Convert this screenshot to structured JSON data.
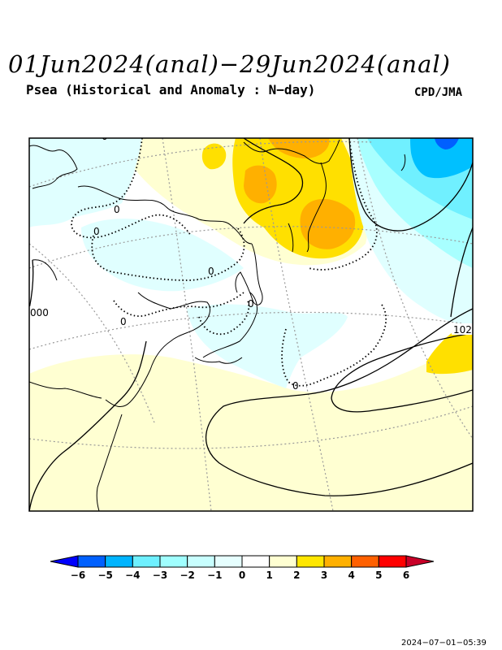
{
  "header": {
    "title": "01Jun2024(anal)−29Jun2024(anal)",
    "subtitle": "Psea (Historical and Anomaly : N−day)",
    "credit": "CPD/JMA"
  },
  "map": {
    "contour_labels": [
      "0",
      "0",
      "0",
      "0",
      "0",
      "0",
      "0",
      "000",
      "102"
    ],
    "fill_colors": {
      "light_yellow": "#ffffd2",
      "yellow": "#ffe000",
      "orange": "#ffb000",
      "pale_cyan": "#e0ffff",
      "light_cyan": "#a8ffff",
      "cyan": "#70f0ff",
      "blue": "#00c0ff"
    }
  },
  "colorbar": {
    "ticks": [
      "−6",
      "−5",
      "−4",
      "−3",
      "−2",
      "−1",
      "0",
      "1",
      "2",
      "3",
      "4",
      "5",
      "6"
    ],
    "colors": [
      "#0000ff",
      "#0060ff",
      "#00b4ff",
      "#6ef0ff",
      "#a0ffff",
      "#c8ffff",
      "#e6ffff",
      "#ffffff",
      "#ffffd2",
      "#ffe600",
      "#ffb000",
      "#ff6000",
      "#ff0000",
      "#c80028"
    ]
  },
  "footer": {
    "timestamp": "2024−07−01−05:39"
  }
}
